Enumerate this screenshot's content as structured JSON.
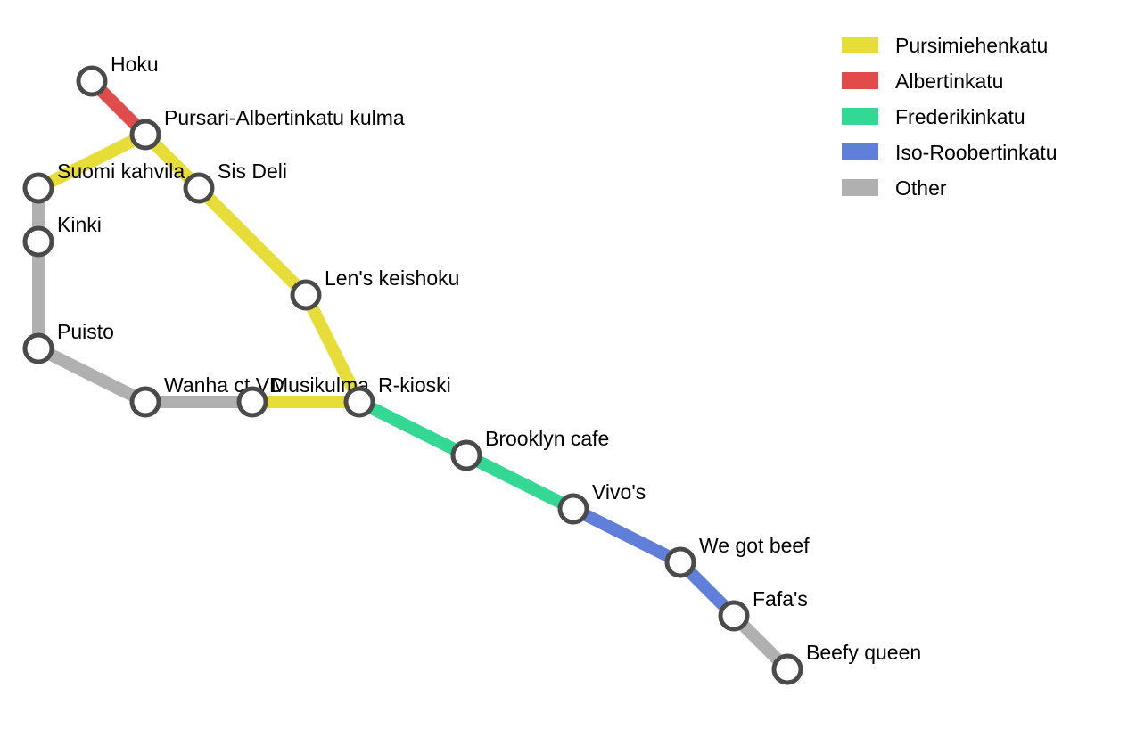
{
  "lines": [
    {
      "id": "pursimiehenkatu",
      "name": "Pursimiehenkatu",
      "color": "#e6dd39"
    },
    {
      "id": "albertinkatu",
      "name": "Albertinkatu",
      "color": "#e04c4c"
    },
    {
      "id": "frederikinkatu",
      "name": "Frederikinkatu",
      "color": "#34d895"
    },
    {
      "id": "iso-roobertinkatu",
      "name": "Iso-Roobertinkatu",
      "color": "#5f7fdb"
    },
    {
      "id": "other",
      "name": "Other",
      "color": "#b0b0b0"
    }
  ],
  "stations": [
    {
      "id": "hoku",
      "name": "Hoku"
    },
    {
      "id": "pursari-albertinkatu-kulma",
      "name": "Pursari-Albertinkatu kulma"
    },
    {
      "id": "suomi-kahvila",
      "name": "Suomi kahvila"
    },
    {
      "id": "sis-deli",
      "name": "Sis Deli"
    },
    {
      "id": "kinki",
      "name": "Kinki"
    },
    {
      "id": "lens-keishoku",
      "name": "Len's keishoku"
    },
    {
      "id": "puisto",
      "name": "Puisto"
    },
    {
      "id": "wanha-ct-vd",
      "name": "Wanha ct VD"
    },
    {
      "id": "musikulma",
      "name": "Musikulma"
    },
    {
      "id": "r-kioski",
      "name": "R-kioski"
    },
    {
      "id": "brooklyn-cafe",
      "name": "Brooklyn cafe"
    },
    {
      "id": "vivos",
      "name": "Vivo's"
    },
    {
      "id": "we-got-beef",
      "name": "We got beef"
    },
    {
      "id": "fafas",
      "name": "Fafa's"
    },
    {
      "id": "beefy-queen",
      "name": "Beefy queen"
    }
  ],
  "segments": [
    {
      "line": "albertinkatu",
      "stations": [
        "hoku",
        "pursari-albertinkatu-kulma"
      ]
    },
    {
      "line": "pursimiehenkatu",
      "stations": [
        "suomi-kahvila",
        "pursari-albertinkatu-kulma",
        "sis-deli",
        "lens-keishoku",
        "r-kioski",
        "musikulma"
      ]
    },
    {
      "line": "other",
      "stations": [
        "suomi-kahvila",
        "kinki",
        "puisto",
        "wanha-ct-vd",
        "musikulma"
      ]
    },
    {
      "line": "frederikinkatu",
      "stations": [
        "r-kioski",
        "brooklyn-cafe",
        "vivos"
      ]
    },
    {
      "line": "iso-roobertinkatu",
      "stations": [
        "vivos",
        "we-got-beef",
        "fafas"
      ]
    },
    {
      "line": "other",
      "stations": [
        "fafas",
        "beefy-queen"
      ]
    }
  ]
}
